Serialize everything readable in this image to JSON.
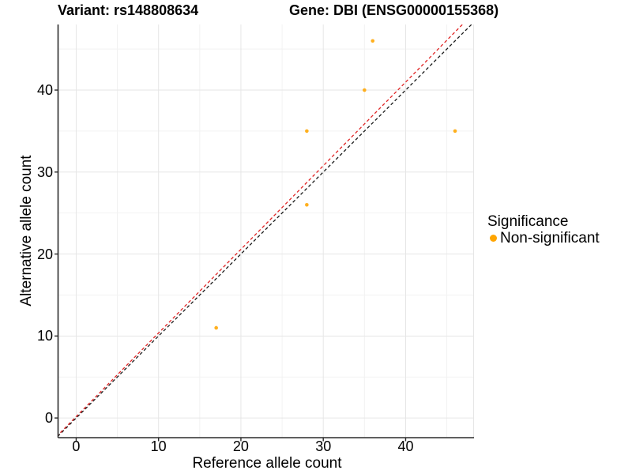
{
  "header": {
    "variant_title": "Variant: rs148808634",
    "gene_title": "Gene: DBI (ENSG00000155368)"
  },
  "chart_data": {
    "type": "scatter",
    "title": "Variant: rs148808634 — Gene: DBI (ENSG00000155368)",
    "xlabel": "Reference allele count",
    "ylabel": "Alternative allele count",
    "xlim": [
      -2.2,
      48.3
    ],
    "ylim": [
      -2.4,
      48.0
    ],
    "x_ticks": [
      0,
      10,
      20,
      30,
      40
    ],
    "y_ticks": [
      0,
      10,
      20,
      30,
      40
    ],
    "x_minor_ticks": [
      5,
      15,
      25,
      35,
      45
    ],
    "y_minor_ticks": [
      5,
      15,
      25,
      35,
      45
    ],
    "grid": "major+minor",
    "points_series": [
      {
        "name": "Non-significant",
        "color": "#FFA500",
        "points": [
          [
            17,
            11
          ],
          [
            28,
            26
          ],
          [
            28,
            35
          ],
          [
            35,
            40
          ],
          [
            36,
            46
          ],
          [
            46,
            35
          ]
        ]
      }
    ],
    "reference_lines": [
      {
        "name": "identity-line",
        "slope": 1.0,
        "intercept": 0.0,
        "color": "#1A1A1A",
        "linetype": "dashed"
      },
      {
        "name": "fit-line",
        "slope": 1.02,
        "intercept": 0.17,
        "color": "#E02424",
        "linetype": "dashed"
      }
    ],
    "legend": {
      "title": "Significance",
      "position": "right",
      "items": [
        {
          "label": "Non-significant",
          "color": "#FFA500"
        }
      ]
    }
  },
  "colors": {
    "background": "#FFFFFF",
    "grid_major": "#E6E6E6",
    "grid_minor": "#F2F2F2",
    "axis": "#2B2B2B",
    "text": "#000000"
  }
}
